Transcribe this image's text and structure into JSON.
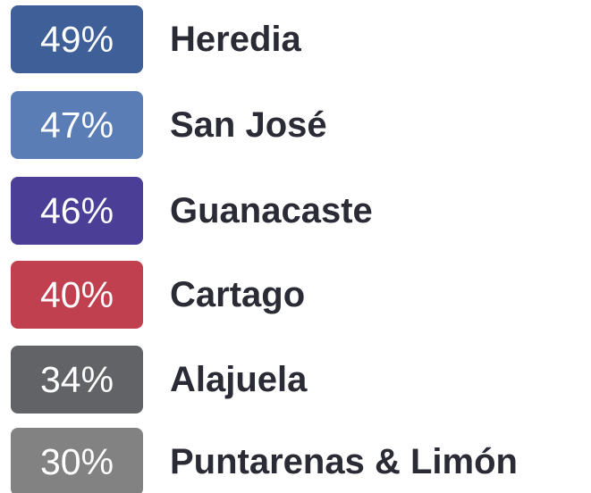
{
  "items": [
    {
      "value_label": "49%",
      "label": "Heredia",
      "color": "#3f5f98"
    },
    {
      "value_label": "47%",
      "label": "San José",
      "color": "#5a7db6"
    },
    {
      "value_label": "46%",
      "label": "Guanacaste",
      "color": "#4b3e96"
    },
    {
      "value_label": "40%",
      "label": "Cartago",
      "color": "#c0404f"
    },
    {
      "value_label": "34%",
      "label": "Alajuela",
      "color": "#626367"
    },
    {
      "value_label": "30%",
      "label": "Puntarenas & Limón",
      "color": "#828282"
    }
  ]
}
